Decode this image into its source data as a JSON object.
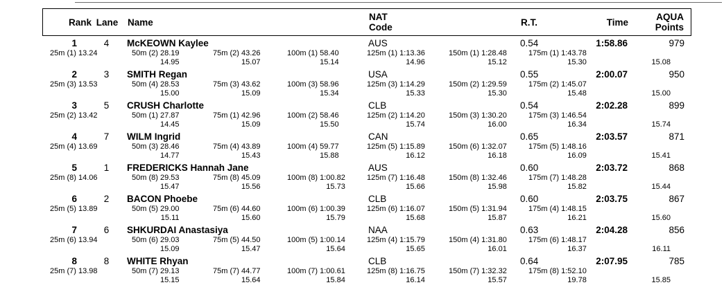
{
  "table": {
    "headers": {
      "rank": "Rank",
      "lane": "Lane",
      "name": "Name",
      "nat_line1": "NAT",
      "nat_line2": "Code",
      "rt": "R.T.",
      "time": "Time",
      "aqua_line1": "AQUA",
      "aqua_line2": "Points"
    },
    "rows": [
      {
        "rank": "1",
        "lane": "4",
        "name": "McKEOWN Kaylee",
        "nat": "AUS",
        "rt": "0.54",
        "time": "1:58.86",
        "points": "979",
        "final_seg": "15.08",
        "splits": [
          {
            "label": "25m",
            "place": "(1)",
            "time": "13.24"
          },
          {
            "label": "50m",
            "place": "(2)",
            "time": "28.19",
            "seg": "14.95"
          },
          {
            "label": "75m",
            "place": "(2)",
            "time": "43.26",
            "seg": "15.07"
          },
          {
            "label": "100m",
            "place": "(1)",
            "time": "58.40",
            "seg": "15.14"
          },
          {
            "label": "125m",
            "place": "(1)",
            "time": "1:13.36",
            "seg": "14.96"
          },
          {
            "label": "150m",
            "place": "(1)",
            "time": "1:28.48",
            "seg": "15.12"
          },
          {
            "label": "175m",
            "place": "(1)",
            "time": "1:43.78",
            "seg": "15.30"
          }
        ]
      },
      {
        "rank": "2",
        "lane": "3",
        "name": "SMITH Regan",
        "nat": "USA",
        "rt": "0.55",
        "time": "2:00.07",
        "points": "950",
        "final_seg": "15.00",
        "splits": [
          {
            "label": "25m",
            "place": "(3)",
            "time": "13.53"
          },
          {
            "label": "50m",
            "place": "(4)",
            "time": "28.53",
            "seg": "15.00"
          },
          {
            "label": "75m",
            "place": "(3)",
            "time": "43.62",
            "seg": "15.09"
          },
          {
            "label": "100m",
            "place": "(3)",
            "time": "58.96",
            "seg": "15.34"
          },
          {
            "label": "125m",
            "place": "(3)",
            "time": "1:14.29",
            "seg": "15.33"
          },
          {
            "label": "150m",
            "place": "(2)",
            "time": "1:29.59",
            "seg": "15.30"
          },
          {
            "label": "175m",
            "place": "(2)",
            "time": "1:45.07",
            "seg": "15.48"
          }
        ]
      },
      {
        "rank": "3",
        "lane": "5",
        "name": "CRUSH Charlotte",
        "nat": "CLB",
        "rt": "0.54",
        "time": "2:02.28",
        "points": "899",
        "final_seg": "15.74",
        "splits": [
          {
            "label": "25m",
            "place": "(2)",
            "time": "13.42"
          },
          {
            "label": "50m",
            "place": "(1)",
            "time": "27.87",
            "seg": "14.45"
          },
          {
            "label": "75m",
            "place": "(1)",
            "time": "42.96",
            "seg": "15.09"
          },
          {
            "label": "100m",
            "place": "(2)",
            "time": "58.46",
            "seg": "15.50"
          },
          {
            "label": "125m",
            "place": "(2)",
            "time": "1:14.20",
            "seg": "15.74"
          },
          {
            "label": "150m",
            "place": "(3)",
            "time": "1:30.20",
            "seg": "16.00"
          },
          {
            "label": "175m",
            "place": "(3)",
            "time": "1:46.54",
            "seg": "16.34"
          }
        ]
      },
      {
        "rank": "4",
        "lane": "7",
        "name": "WILM Ingrid",
        "nat": "CAN",
        "rt": "0.65",
        "time": "2:03.57",
        "points": "871",
        "final_seg": "15.41",
        "splits": [
          {
            "label": "25m",
            "place": "(4)",
            "time": "13.69"
          },
          {
            "label": "50m",
            "place": "(3)",
            "time": "28.46",
            "seg": "14.77"
          },
          {
            "label": "75m",
            "place": "(4)",
            "time": "43.89",
            "seg": "15.43"
          },
          {
            "label": "100m",
            "place": "(4)",
            "time": "59.77",
            "seg": "15.88"
          },
          {
            "label": "125m",
            "place": "(5)",
            "time": "1:15.89",
            "seg": "16.12"
          },
          {
            "label": "150m",
            "place": "(6)",
            "time": "1:32.07",
            "seg": "16.18"
          },
          {
            "label": "175m",
            "place": "(5)",
            "time": "1:48.16",
            "seg": "16.09"
          }
        ]
      },
      {
        "rank": "5",
        "lane": "1",
        "name": "FREDERICKS Hannah Jane",
        "nat": "AUS",
        "rt": "0.60",
        "time": "2:03.72",
        "points": "868",
        "final_seg": "15.44",
        "splits": [
          {
            "label": "25m",
            "place": "(8)",
            "time": "14.06"
          },
          {
            "label": "50m",
            "place": "(8)",
            "time": "29.53",
            "seg": "15.47"
          },
          {
            "label": "75m",
            "place": "(8)",
            "time": "45.09",
            "seg": "15.56"
          },
          {
            "label": "100m",
            "place": "(8)",
            "time": "1:00.82",
            "seg": "15.73"
          },
          {
            "label": "125m",
            "place": "(7)",
            "time": "1:16.48",
            "seg": "15.66"
          },
          {
            "label": "150m",
            "place": "(8)",
            "time": "1:32.46",
            "seg": "15.98"
          },
          {
            "label": "175m",
            "place": "(7)",
            "time": "1:48.28",
            "seg": "15.82"
          }
        ]
      },
      {
        "rank": "6",
        "lane": "2",
        "name": "BACON Phoebe",
        "nat": "CLB",
        "rt": "0.60",
        "time": "2:03.75",
        "points": "867",
        "final_seg": "15.60",
        "splits": [
          {
            "label": "25m",
            "place": "(5)",
            "time": "13.89"
          },
          {
            "label": "50m",
            "place": "(5)",
            "time": "29.00",
            "seg": "15.11"
          },
          {
            "label": "75m",
            "place": "(6)",
            "time": "44.60",
            "seg": "15.60"
          },
          {
            "label": "100m",
            "place": "(6)",
            "time": "1:00.39",
            "seg": "15.79"
          },
          {
            "label": "125m",
            "place": "(6)",
            "time": "1:16.07",
            "seg": "15.68"
          },
          {
            "label": "150m",
            "place": "(5)",
            "time": "1:31.94",
            "seg": "15.87"
          },
          {
            "label": "175m",
            "place": "(4)",
            "time": "1:48.15",
            "seg": "16.21"
          }
        ]
      },
      {
        "rank": "7",
        "lane": "6",
        "name": "SHKURDAI Anastasiya",
        "nat": "NAA",
        "rt": "0.63",
        "time": "2:04.28",
        "points": "856",
        "final_seg": "16.11",
        "splits": [
          {
            "label": "25m",
            "place": "(6)",
            "time": "13.94"
          },
          {
            "label": "50m",
            "place": "(6)",
            "time": "29.03",
            "seg": "15.09"
          },
          {
            "label": "75m",
            "place": "(5)",
            "time": "44.50",
            "seg": "15.47"
          },
          {
            "label": "100m",
            "place": "(5)",
            "time": "1:00.14",
            "seg": "15.64"
          },
          {
            "label": "125m",
            "place": "(4)",
            "time": "1:15.79",
            "seg": "15.65"
          },
          {
            "label": "150m",
            "place": "(4)",
            "time": "1:31.80",
            "seg": "16.01"
          },
          {
            "label": "175m",
            "place": "(6)",
            "time": "1:48.17",
            "seg": "16.37"
          }
        ]
      },
      {
        "rank": "8",
        "lane": "8",
        "name": "WHITE Rhyan",
        "nat": "CLB",
        "rt": "0.64",
        "time": "2:07.95",
        "points": "785",
        "final_seg": "15.85",
        "splits": [
          {
            "label": "25m",
            "place": "(7)",
            "time": "13.98"
          },
          {
            "label": "50m",
            "place": "(7)",
            "time": "29.13",
            "seg": "15.15"
          },
          {
            "label": "75m",
            "place": "(7)",
            "time": "44.77",
            "seg": "15.64"
          },
          {
            "label": "100m",
            "place": "(7)",
            "time": "1:00.61",
            "seg": "15.84"
          },
          {
            "label": "125m",
            "place": "(8)",
            "time": "1:16.75",
            "seg": "16.14"
          },
          {
            "label": "150m",
            "place": "(7)",
            "time": "1:32.32",
            "seg": "15.57"
          },
          {
            "label": "175m",
            "place": "(8)",
            "time": "1:52.10",
            "seg": "19.78"
          }
        ]
      }
    ]
  }
}
